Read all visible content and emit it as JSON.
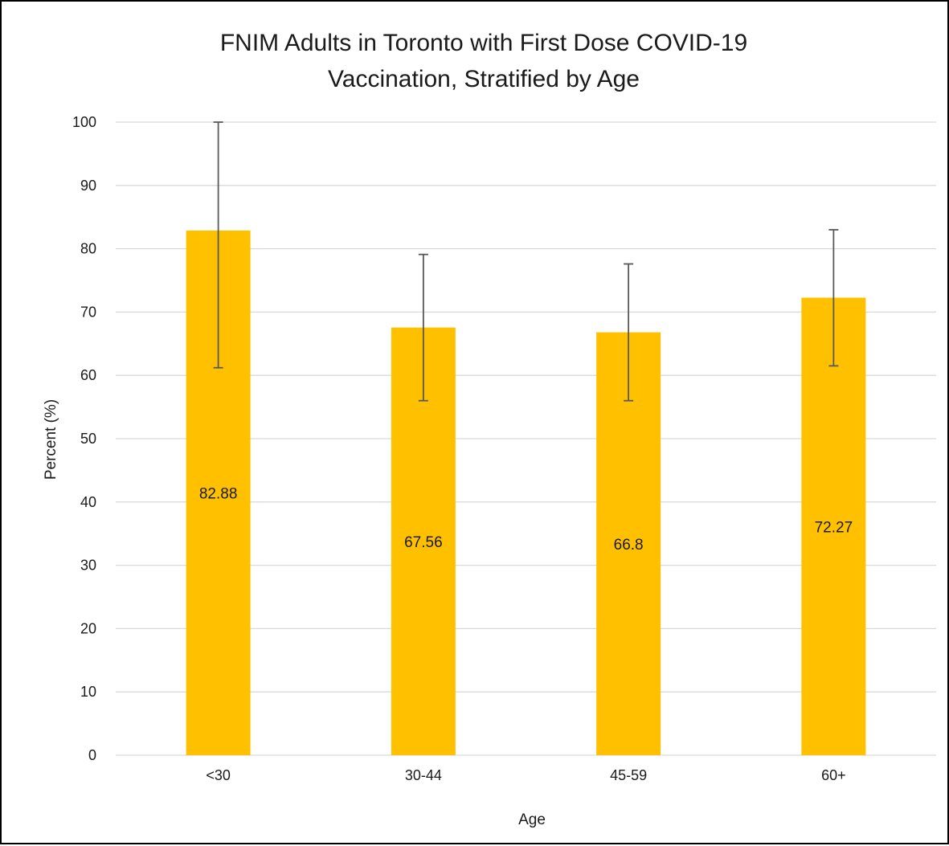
{
  "chart_data": {
    "type": "bar",
    "title_lines": [
      "FNIM Adults in Toronto with First Dose COVID-19",
      "Vaccination, Stratified by Age"
    ],
    "xlabel": "Age",
    "ylabel": "Percent (%)",
    "categories": [
      "<30",
      "30-44",
      "45-59",
      "60+"
    ],
    "values": [
      82.88,
      67.56,
      66.8,
      72.27
    ],
    "value_labels": [
      "82.88",
      "67.56",
      "66.8",
      "72.27"
    ],
    "error_bars": [
      {
        "low": 61.2,
        "high": 100
      },
      {
        "low": 56.0,
        "high": 79.1
      },
      {
        "low": 56.0,
        "high": 77.6
      },
      {
        "low": 61.5,
        "high": 83.0
      }
    ],
    "ylim": [
      0,
      100
    ],
    "yticks": [
      0,
      10,
      20,
      30,
      40,
      50,
      60,
      70,
      80,
      90,
      100
    ],
    "grid": true,
    "legend": "none",
    "bar_color": "#FFC000",
    "error_bar_color": "#595959",
    "grid_color": "#d9d9d9"
  }
}
